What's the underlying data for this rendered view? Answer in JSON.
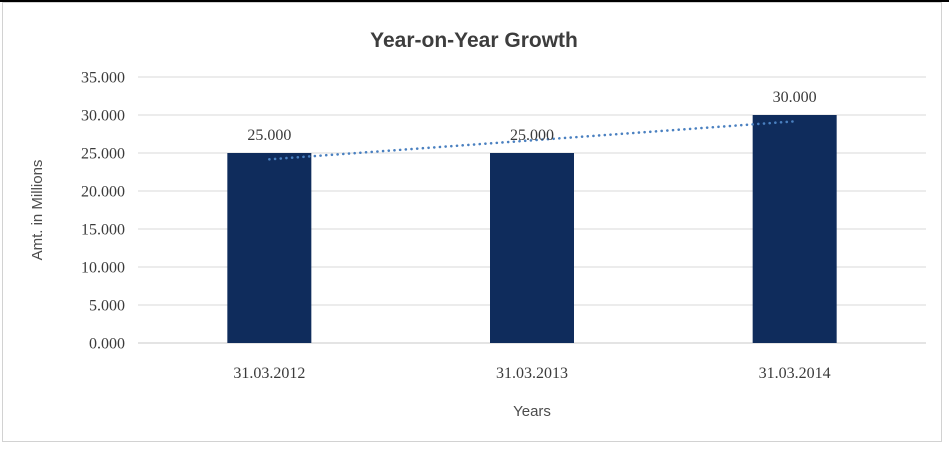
{
  "chart_data": {
    "type": "bar",
    "title": "Year-on-Year Growth",
    "categories": [
      "31.03.2012",
      "31.03.2013",
      "31.03.2014"
    ],
    "values": [
      25,
      25,
      30
    ],
    "data_labels": [
      "25.000",
      "25.000",
      "30.000"
    ],
    "xlabel": "Years",
    "ylabel": "Amt. in Millions",
    "ylim": [
      0,
      35
    ],
    "y_tick_labels": [
      "0.000",
      "5.000",
      "10.000",
      "15.000",
      "20.000",
      "25.000",
      "30.000",
      "35.000"
    ],
    "grid": true,
    "legend": "none",
    "trendline": {
      "type": "linear",
      "style": "dotted"
    },
    "colors": {
      "bar": "#0f2c5c",
      "trendline": "#4a80c0",
      "gridline": "#d9d9d9",
      "axis_line": "#c9c9c9",
      "title_text": "#3d3d3d",
      "label_text": "#3a3a3a",
      "axis_title_text": "#4c4c4c"
    }
  }
}
